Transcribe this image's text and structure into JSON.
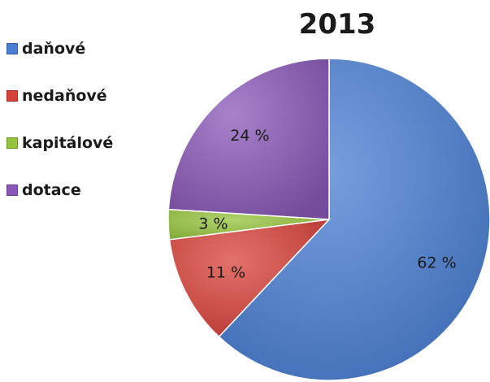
{
  "chart_data": {
    "type": "pie",
    "title": "2013",
    "categories": [
      "daňové",
      "nedaňové",
      "kapitálové",
      "dotace"
    ],
    "values": [
      62,
      11,
      3,
      24
    ],
    "data_labels": [
      "62 %",
      "11 %",
      "3 %",
      "24 %"
    ],
    "colors": [
      "#4a7fd4",
      "#d9423a",
      "#96c43c",
      "#8a58b8"
    ],
    "legend_placement": "left",
    "start_angle_deg": 0,
    "direction": "clockwise"
  }
}
